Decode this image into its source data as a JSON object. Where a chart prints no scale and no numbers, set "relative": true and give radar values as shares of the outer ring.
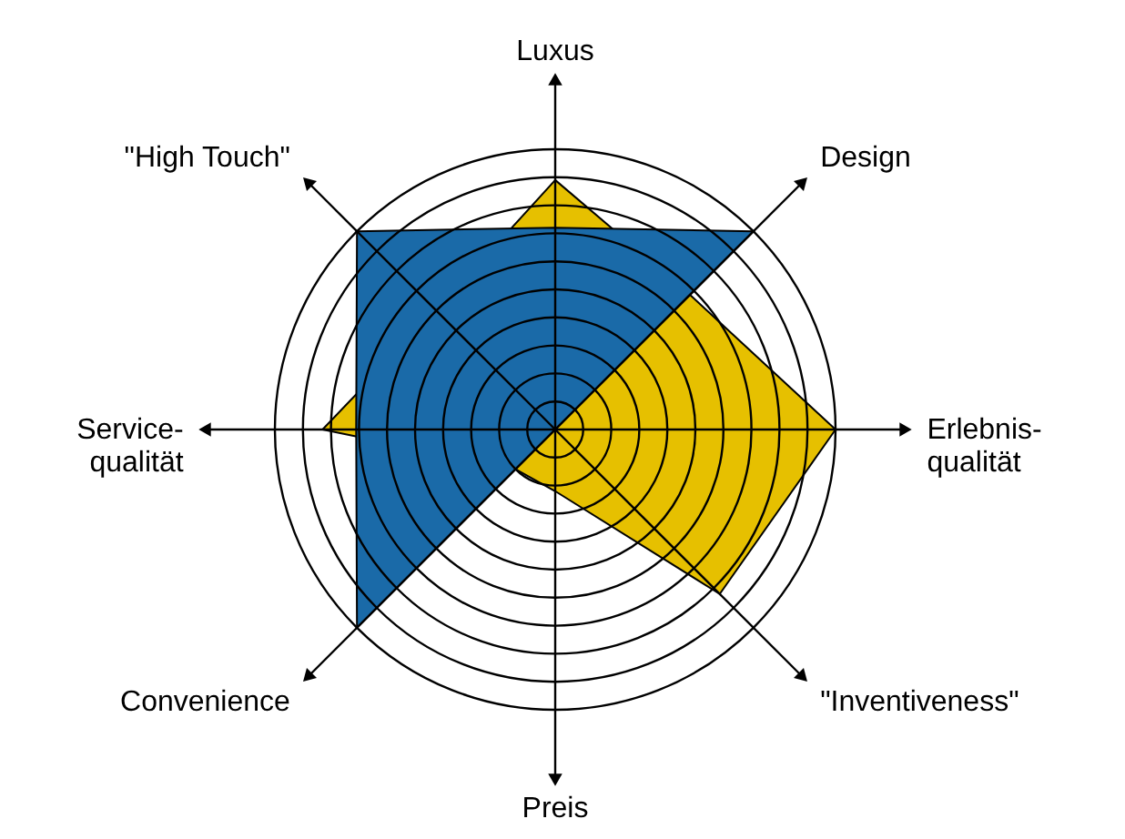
{
  "chart_data": {
    "type": "radar",
    "relative": true,
    "grid": true,
    "categories": [
      "Luxus",
      "Design",
      "Erlebnis-\nqualität",
      "\"Inventiveness\"",
      "Preis",
      "Convenience",
      "Service-\nqualität",
      "\"High Touch\""
    ],
    "series": [
      {
        "color": "#e6c000",
        "values": [
          0.89,
          0.68,
          1.0,
          0.83,
          0.22,
          0.2,
          0.83,
          0.6
        ]
      },
      {
        "color": "#1a6aa8",
        "values": [
          0.72,
          1.0,
          0,
          0,
          0,
          1.0,
          0.71,
          1.0
        ]
      }
    ]
  }
}
